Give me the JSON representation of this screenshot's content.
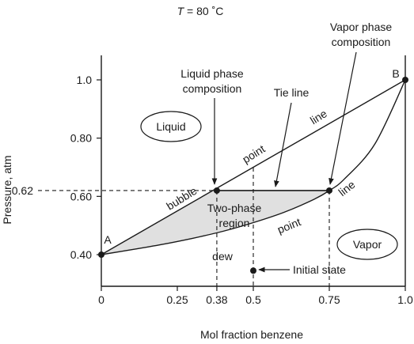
{
  "chart_data": {
    "type": "line",
    "title": "T = 80 ˚C",
    "title_var": "T",
    "title_rest": " = 80 ˚C",
    "xlabel": "Mol fraction benzene",
    "ylabel": "Pressure, atm",
    "xlim": [
      0,
      1.0
    ],
    "ylim": [
      0.35,
      1.05
    ],
    "x_ticks": [
      {
        "value": 0,
        "label": "0"
      },
      {
        "value": 0.25,
        "label": "0.25"
      },
      {
        "value": 0.38,
        "label": "0.38"
      },
      {
        "value": 0.5,
        "label": "0.5"
      },
      {
        "value": 0.75,
        "label": "0.75"
      },
      {
        "value": 1.0,
        "label": "1.0"
      }
    ],
    "y_ticks": [
      {
        "value": 0.4,
        "label": "0.40"
      },
      {
        "value": 0.6,
        "label": "0.60"
      },
      {
        "value": 0.8,
        "label": "0.80"
      },
      {
        "value": 1.0,
        "label": "1.0"
      }
    ],
    "y_marker": {
      "value": 0.62,
      "label": "0.62"
    },
    "series": [
      {
        "x": [
          0,
          1.0
        ],
        "y": [
          0.4,
          1.0
        ]
      },
      {
        "x": [
          0,
          0.1,
          0.2,
          0.3,
          0.4,
          0.5,
          0.6,
          0.7,
          0.75,
          0.8,
          0.9,
          1.0
        ],
        "y": [
          0.4,
          0.417,
          0.435,
          0.456,
          0.48,
          0.51,
          0.545,
          0.59,
          0.62,
          0.66,
          0.78,
          1.0
        ]
      }
    ],
    "points": [
      {
        "name": "A",
        "label": "A",
        "x": 0,
        "y": 0.4
      },
      {
        "name": "B",
        "label": "B",
        "x": 1.0,
        "y": 1.0
      },
      {
        "name": "liquid-composition",
        "x": 0.38,
        "y": 0.62
      },
      {
        "name": "vapor-composition",
        "x": 0.75,
        "y": 0.62
      },
      {
        "name": "initial-state",
        "x": 0.5,
        "y": 0.345
      }
    ],
    "tie_line": {
      "y": 0.62,
      "x_start": 0.38,
      "x_end": 0.75
    },
    "annotations": {
      "liquid_phase_line1": "Liquid phase",
      "liquid_phase_line2": "composition",
      "vapor_phase_line1": "Vapor phase",
      "vapor_phase_line2": "composition",
      "tie_line": "Tie line",
      "liquid_region": "Liquid",
      "vapor_region": "Vapor",
      "two_phase_line1": "Two-phase",
      "two_phase_line2": "region",
      "initial_state": "Initial state",
      "bubble_word": "bubble",
      "point_word_top": "point",
      "line_word_top": "line",
      "dew_word": "dew",
      "point_word_bottom": "point",
      "line_word_bottom": "line"
    }
  }
}
